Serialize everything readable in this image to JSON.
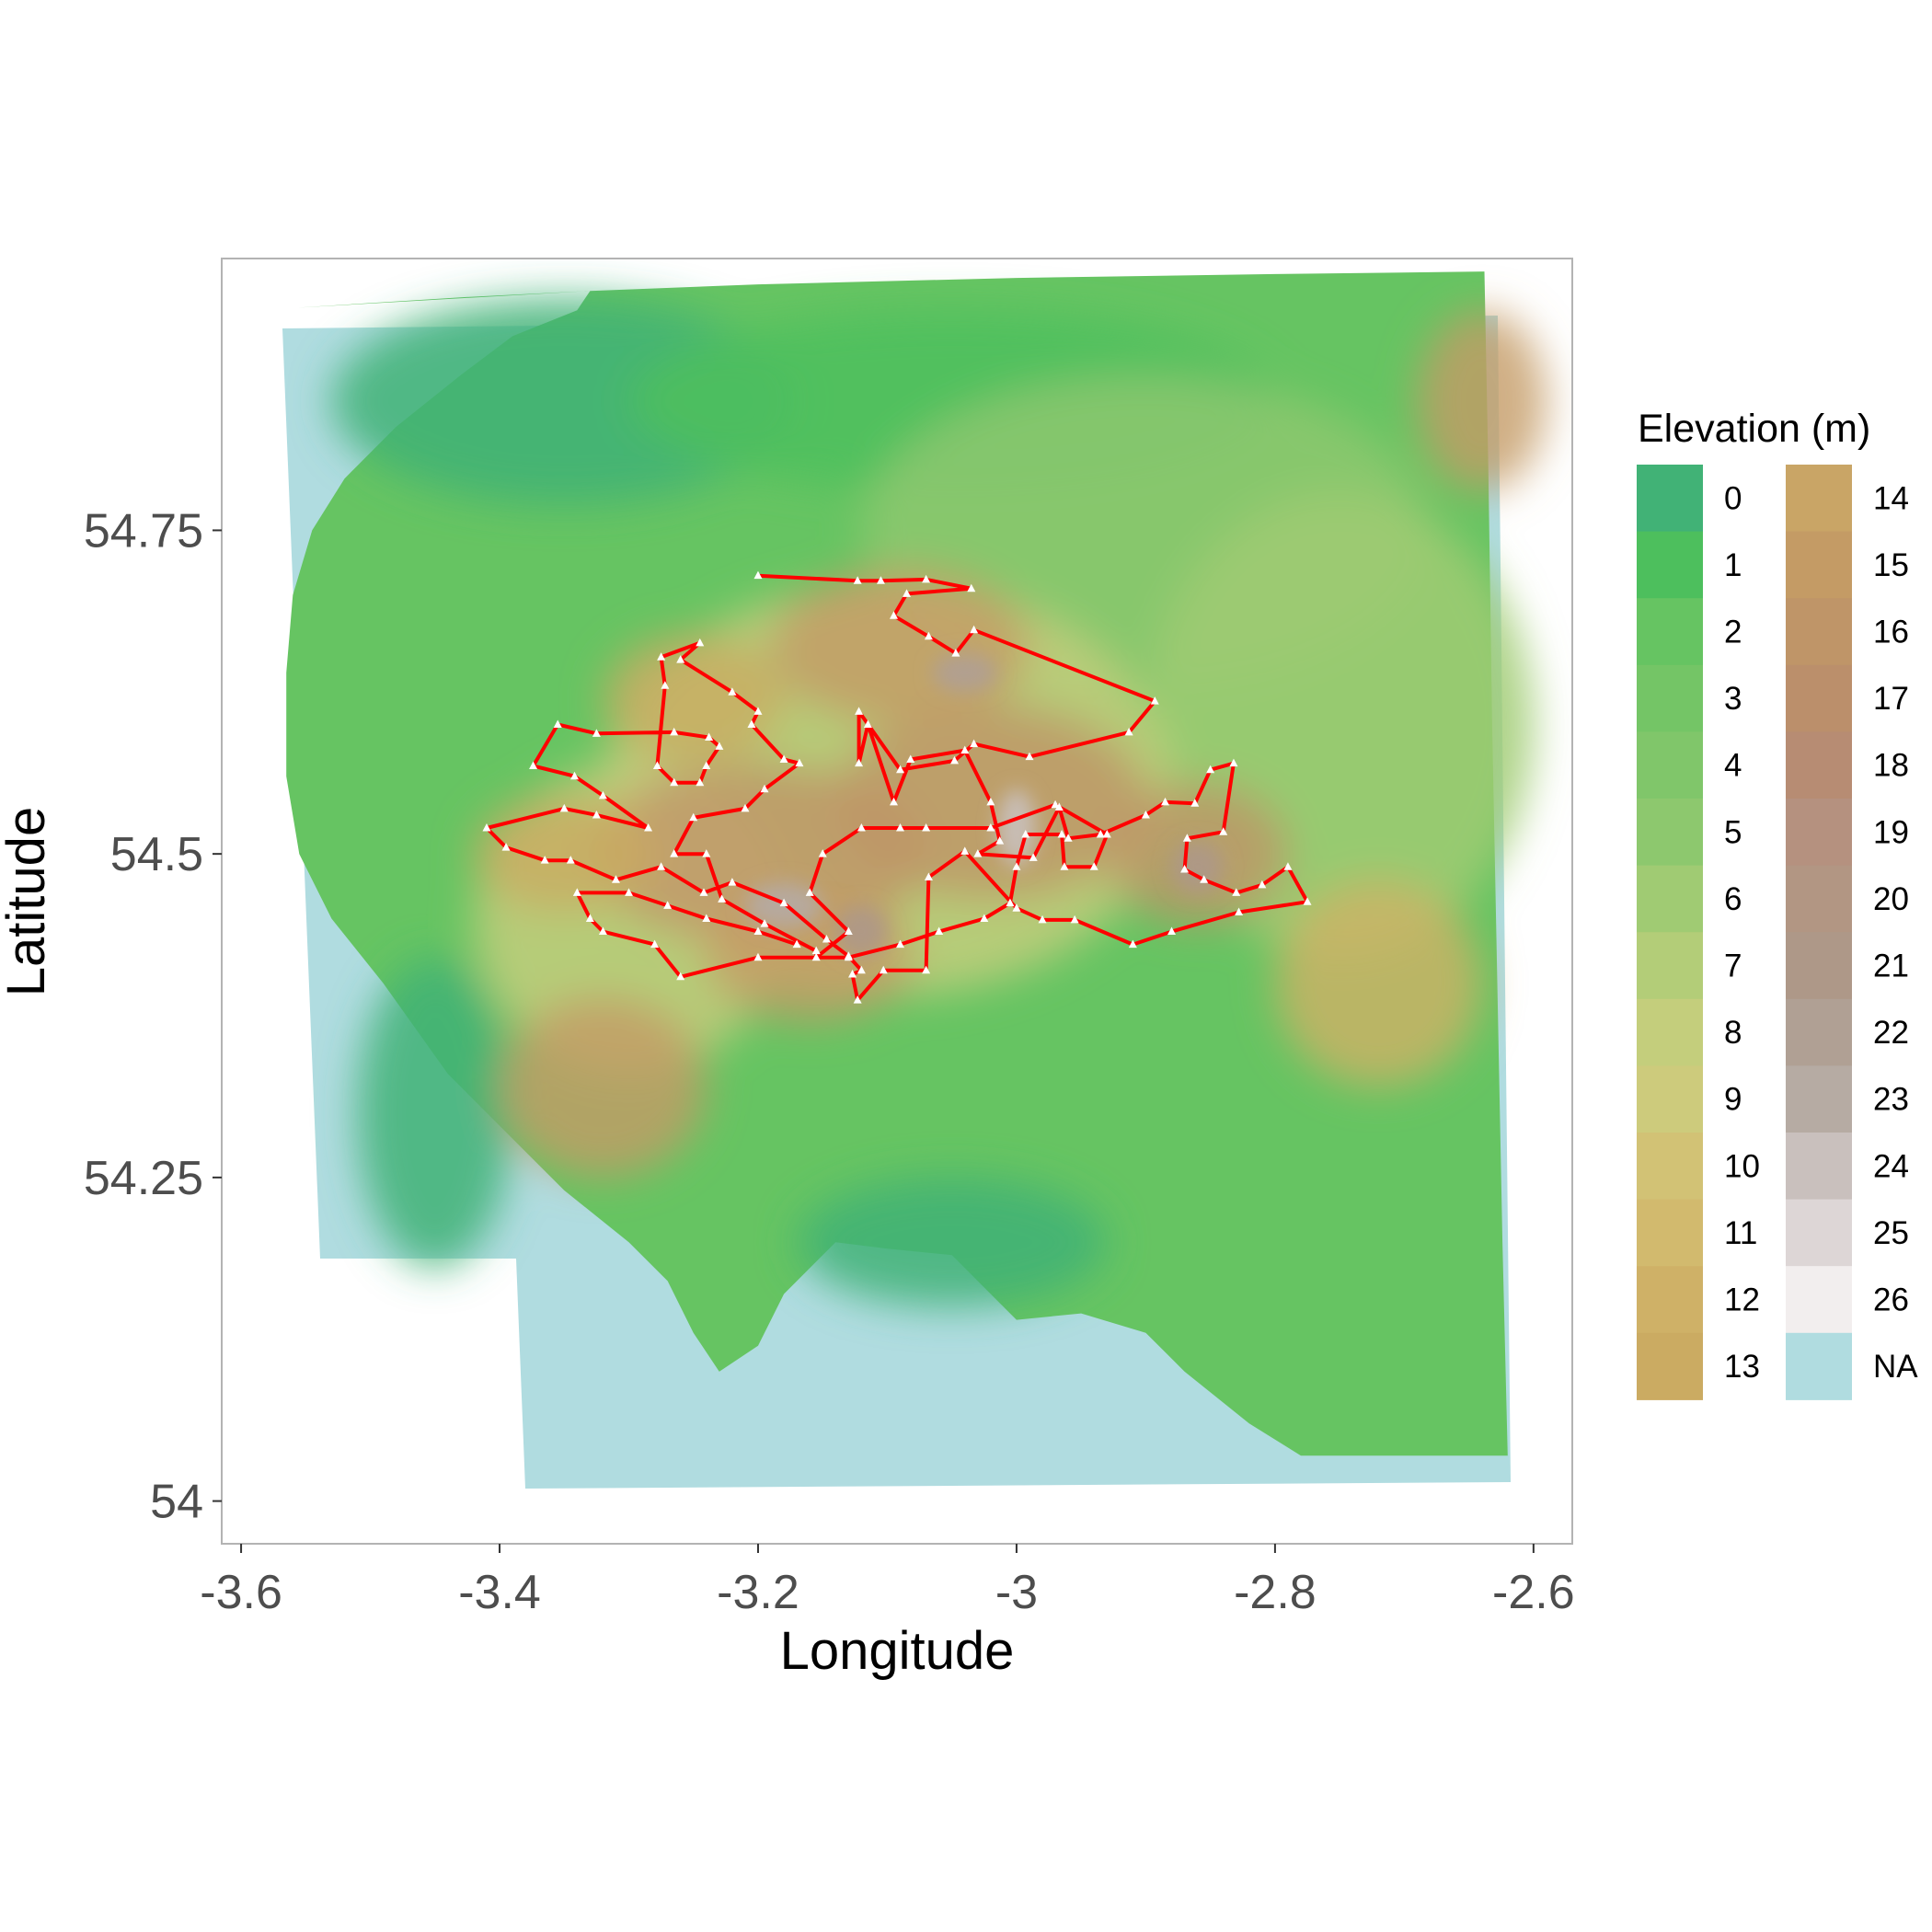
{
  "axes": {
    "x_title": "Longitude",
    "y_title": "Latitude",
    "x_range": [
      -3.615,
      -2.57
    ],
    "y_range": [
      53.967,
      54.96
    ],
    "x_ticks": [
      {
        "value": -3.6,
        "label": "-3.6"
      },
      {
        "value": -3.4,
        "label": "-3.4"
      },
      {
        "value": -3.2,
        "label": "-3.2"
      },
      {
        "value": -3.0,
        "label": "-3"
      },
      {
        "value": -2.8,
        "label": "-2.8"
      },
      {
        "value": -2.6,
        "label": "-2.6"
      }
    ],
    "y_ticks": [
      {
        "value": 54.0,
        "label": "54"
      },
      {
        "value": 54.25,
        "label": "54.25"
      },
      {
        "value": 54.5,
        "label": "54.5"
      },
      {
        "value": 54.75,
        "label": "54.75"
      }
    ]
  },
  "legend": {
    "title": "Elevation (m)",
    "classes": [
      {
        "label": "0",
        "color": "#41b276"
      },
      {
        "label": "1",
        "color": "#4dbf5d"
      },
      {
        "label": "2",
        "color": "#66c462"
      },
      {
        "label": "3",
        "color": "#74c566"
      },
      {
        "label": "4",
        "color": "#80c66a"
      },
      {
        "label": "5",
        "color": "#8dc86e"
      },
      {
        "label": "6",
        "color": "#a0cb73"
      },
      {
        "label": "7",
        "color": "#b3cd78"
      },
      {
        "label": "8",
        "color": "#c4ce7c"
      },
      {
        "label": "9",
        "color": "#cdcb7c"
      },
      {
        "label": "10",
        "color": "#d2c275"
      },
      {
        "label": "11",
        "color": "#d2ba6e"
      },
      {
        "label": "12",
        "color": "#cfb167"
      },
      {
        "label": "13",
        "color": "#cbab62"
      },
      {
        "label": "14",
        "color": "#c9a566"
      },
      {
        "label": "15",
        "color": "#c49b65"
      },
      {
        "label": "16",
        "color": "#bf9568"
      },
      {
        "label": "17",
        "color": "#bb8f6b"
      },
      {
        "label": "18",
        "color": "#b78c73"
      },
      {
        "label": "19",
        "color": "#b5917f"
      },
      {
        "label": "20",
        "color": "#b29683"
      },
      {
        "label": "21",
        "color": "#ae9888"
      },
      {
        "label": "22",
        "color": "#b0a094"
      },
      {
        "label": "23",
        "color": "#b6aba3"
      },
      {
        "label": "24",
        "color": "#c9c0bd"
      },
      {
        "label": "25",
        "color": "#ddd6d6"
      },
      {
        "label": "26",
        "color": "#f2eeee"
      },
      {
        "label": "NA",
        "color": "#b0dce0"
      }
    ]
  },
  "colors": {
    "sea": "#b0dce0",
    "route": "#ff0000",
    "summit_marker": "#ffffff",
    "panel_border": "#b3b3b3",
    "tick_text": "#4d4d4d"
  },
  "map_data": {
    "land_outline": [
      [
        -3.557,
        54.922
      ],
      [
        -3.43,
        54.93
      ],
      [
        -3.33,
        54.935
      ],
      [
        -3.2,
        54.94
      ],
      [
        -3.0,
        54.945
      ],
      [
        -2.8,
        54.948
      ],
      [
        -2.638,
        54.95
      ],
      [
        -2.635,
        54.8
      ],
      [
        -2.632,
        54.6
      ],
      [
        -2.628,
        54.4
      ],
      [
        -2.624,
        54.2
      ],
      [
        -2.62,
        54.035
      ],
      [
        -2.7,
        54.035
      ],
      [
        -2.78,
        54.035
      ],
      [
        -2.82,
        54.06
      ],
      [
        -2.87,
        54.1
      ],
      [
        -2.9,
        54.13
      ],
      [
        -2.95,
        54.145
      ],
      [
        -3.0,
        54.14
      ],
      [
        -3.02,
        54.16
      ],
      [
        -3.05,
        54.19
      ],
      [
        -3.1,
        54.195
      ],
      [
        -3.14,
        54.2
      ],
      [
        -3.18,
        54.16
      ],
      [
        -3.2,
        54.12
      ],
      [
        -3.23,
        54.1
      ],
      [
        -3.25,
        54.13
      ],
      [
        -3.27,
        54.17
      ],
      [
        -3.3,
        54.2
      ],
      [
        -3.35,
        54.24
      ],
      [
        -3.4,
        54.29
      ],
      [
        -3.44,
        54.33
      ],
      [
        -3.49,
        54.4
      ],
      [
        -3.53,
        54.45
      ],
      [
        -3.555,
        54.5
      ],
      [
        -3.565,
        54.56
      ],
      [
        -3.565,
        54.64
      ],
      [
        -3.56,
        54.7
      ],
      [
        -3.545,
        54.75
      ],
      [
        -3.52,
        54.79
      ],
      [
        -3.48,
        54.83
      ],
      [
        -3.43,
        54.87
      ],
      [
        -3.39,
        54.9
      ],
      [
        -3.34,
        54.92
      ],
      [
        -3.33,
        54.935
      ]
    ],
    "high_ground": [
      {
        "center": [
          -3.02,
          54.54
        ],
        "radius": [
          0.12,
          0.075
        ],
        "level": 16
      },
      {
        "center": [
          -3.2,
          54.5
        ],
        "radius": [
          0.13,
          0.07
        ],
        "level": 16
      },
      {
        "center": [
          -3.09,
          54.66
        ],
        "radius": [
          0.1,
          0.06
        ],
        "level": 15
      },
      {
        "center": [
          -2.86,
          54.5
        ],
        "radius": [
          0.07,
          0.055
        ],
        "level": 16
      },
      {
        "center": [
          -3.16,
          54.42
        ],
        "radius": [
          0.08,
          0.05
        ],
        "level": 15
      },
      {
        "center": [
          -3.35,
          54.5
        ],
        "radius": [
          0.07,
          0.045
        ],
        "level": 13
      },
      {
        "center": [
          -3.32,
          54.32
        ],
        "radius": [
          0.08,
          0.07
        ],
        "level": 15
      },
      {
        "center": [
          -2.64,
          54.85
        ],
        "radius": [
          0.05,
          0.07
        ],
        "level": 15
      },
      {
        "center": [
          -2.72,
          54.4
        ],
        "radius": [
          0.08,
          0.08
        ],
        "level": 12
      },
      {
        "center": [
          -3.25,
          54.62
        ],
        "radius": [
          0.07,
          0.05
        ],
        "level": 13
      }
    ],
    "peaks": [
      {
        "center": [
          -3.0,
          54.52
        ],
        "radius": [
          0.015,
          0.03
        ],
        "level": 24
      },
      {
        "center": [
          -3.18,
          54.46
        ],
        "radius": [
          0.03,
          0.018
        ],
        "level": 23
      },
      {
        "center": [
          -3.04,
          54.64
        ],
        "radius": [
          0.025,
          0.015
        ],
        "level": 22
      },
      {
        "center": [
          -2.86,
          54.49
        ],
        "radius": [
          0.02,
          0.02
        ],
        "level": 21
      },
      {
        "center": [
          -3.12,
          54.44
        ],
        "radius": [
          0.02,
          0.02
        ],
        "level": 21
      }
    ],
    "route": [
      [
        -3.2,
        54.715
      ],
      [
        -3.123,
        54.714
      ],
      [
        -3.117,
        54.694
      ],
      [
        -3.106,
        54.713
      ],
      [
        -3.07,
        54.713
      ],
      [
        -3.046,
        54.716
      ],
      [
        -3.023,
        54.7
      ],
      [
        -3.064,
        54.697
      ],
      [
        -3.088,
        54.692
      ],
      [
        -3.1,
        54.676
      ],
      [
        -3.085,
        54.661
      ],
      [
        -3.043,
        54.645
      ],
      [
        -3.03,
        54.654
      ],
      [
        -3.025,
        54.664
      ],
      [
        -3.042,
        54.647
      ],
      [
        -3.069,
        54.648
      ],
      [
        -3.083,
        54.66
      ],
      [
        -3.096,
        54.686
      ],
      [
        -3.113,
        54.7
      ],
      [
        -3.117,
        54.713
      ],
      [
        -3.2,
        54.715
      ],
      [
        -3.12,
        54.697
      ],
      [
        -3.1,
        54.676
      ]
    ],
    "summits": [
      [
        -3.2,
        54.715
      ],
      [
        -3.123,
        54.714
      ],
      [
        -3.106,
        54.713
      ],
      [
        -3.07,
        54.713
      ],
      [
        -3.046,
        54.716
      ],
      [
        -3.023,
        54.7
      ],
      [
        -3.1,
        54.676
      ],
      [
        -3.043,
        54.645
      ],
      [
        -3.03,
        54.654
      ],
      [
        -3.083,
        54.66
      ]
    ]
  },
  "route_points": [
    [
      -3.2,
      54.715
    ],
    [
      -3.123,
      54.711
    ],
    [
      -3.105,
      54.711
    ],
    [
      -3.07,
      54.712
    ],
    [
      -3.035,
      54.705
    ],
    [
      -3.085,
      54.701
    ],
    [
      -3.095,
      54.684
    ],
    [
      -3.068,
      54.668
    ],
    [
      -3.047,
      54.655
    ],
    [
      -3.033,
      54.673
    ],
    [
      -2.893,
      54.618
    ],
    [
      -2.913,
      54.594
    ],
    [
      -2.99,
      54.575
    ],
    [
      -3.033,
      54.585
    ],
    [
      -3.048,
      54.572
    ],
    [
      -3.09,
      54.565
    ],
    [
      -3.122,
      54.61
    ],
    [
      -3.122,
      54.57
    ],
    [
      -3.115,
      54.6
    ],
    [
      -3.095,
      54.54
    ],
    [
      -3.082,
      54.573
    ],
    [
      -3.04,
      54.58
    ],
    [
      -3.02,
      54.54
    ],
    [
      -3.013,
      54.51
    ],
    [
      -3.03,
      54.5
    ],
    [
      -2.987,
      54.497
    ],
    [
      -2.967,
      54.536
    ],
    [
      -2.96,
      54.512
    ],
    [
      -2.935,
      54.515
    ],
    [
      -2.9,
      54.53
    ],
    [
      -2.885,
      54.54
    ],
    [
      -2.862,
      54.539
    ],
    [
      -2.85,
      54.565
    ],
    [
      -2.832,
      54.57
    ],
    [
      -2.84,
      54.517
    ],
    [
      -2.868,
      54.512
    ],
    [
      -2.87,
      54.488
    ],
    [
      -2.855,
      54.48
    ],
    [
      -2.83,
      54.47
    ],
    [
      -2.81,
      54.476
    ],
    [
      -2.79,
      54.49
    ],
    [
      -2.775,
      54.463
    ],
    [
      -2.828,
      54.455
    ],
    [
      -2.88,
      54.44
    ],
    [
      -2.91,
      54.43
    ],
    [
      -2.955,
      54.449
    ],
    [
      -2.98,
      54.449
    ],
    [
      -3.0,
      54.458
    ],
    [
      -3.04,
      54.502
    ],
    [
      -3.068,
      54.482
    ],
    [
      -3.07,
      54.41
    ],
    [
      -3.103,
      54.41
    ],
    [
      -3.123,
      54.387
    ],
    [
      -3.127,
      54.407
    ],
    [
      -3.12,
      54.41
    ],
    [
      -3.13,
      54.421
    ],
    [
      -3.147,
      54.434
    ],
    [
      -3.18,
      54.462
    ],
    [
      -3.22,
      54.478
    ],
    [
      -3.242,
      54.47
    ],
    [
      -3.275,
      54.49
    ],
    [
      -3.31,
      54.48
    ],
    [
      -3.345,
      54.495
    ],
    [
      -3.365,
      54.495
    ],
    [
      -3.395,
      54.505
    ],
    [
      -3.41,
      54.52
    ],
    [
      -3.35,
      54.535
    ],
    [
      -3.325,
      54.53
    ],
    [
      -3.285,
      54.52
    ],
    [
      -3.32,
      54.545
    ],
    [
      -3.342,
      54.56
    ],
    [
      -3.374,
      54.568
    ],
    [
      -3.355,
      54.6
    ],
    [
      -3.325,
      54.593
    ],
    [
      -3.265,
      54.594
    ],
    [
      -3.238,
      54.59
    ],
    [
      -3.23,
      54.583
    ],
    [
      -3.24,
      54.568
    ],
    [
      -3.245,
      54.555
    ],
    [
      -3.265,
      54.555
    ],
    [
      -3.278,
      54.568
    ],
    [
      -3.272,
      54.63
    ],
    [
      -3.275,
      54.652
    ],
    [
      -3.245,
      54.663
    ],
    [
      -3.26,
      54.65
    ],
    [
      -3.22,
      54.625
    ],
    [
      -3.2,
      54.61
    ],
    [
      -3.205,
      54.6
    ],
    [
      -3.18,
      54.573
    ],
    [
      -3.168,
      54.57
    ],
    [
      -3.195,
      54.55
    ],
    [
      -3.21,
      54.535
    ],
    [
      -3.25,
      54.528
    ],
    [
      -3.265,
      54.5
    ],
    [
      -3.24,
      54.5
    ],
    [
      -3.228,
      54.465
    ],
    [
      -3.195,
      54.446
    ],
    [
      -3.155,
      54.425
    ],
    [
      -3.155,
      54.42
    ],
    [
      -3.13,
      54.44
    ],
    [
      -3.16,
      54.47
    ],
    [
      -3.15,
      54.5
    ],
    [
      -3.12,
      54.52
    ],
    [
      -3.09,
      54.52
    ],
    [
      -3.07,
      54.52
    ],
    [
      -3.02,
      54.52
    ],
    [
      -2.97,
      54.538
    ],
    [
      -2.93,
      54.515
    ],
    [
      -2.94,
      54.49
    ],
    [
      -2.963,
      54.49
    ],
    [
      -2.965,
      54.515
    ],
    [
      -2.993,
      54.515
    ],
    [
      -3.0,
      54.49
    ],
    [
      -3.005,
      54.462
    ],
    [
      -3.025,
      54.45
    ],
    [
      -3.06,
      54.44
    ],
    [
      -3.09,
      54.43
    ],
    [
      -3.13,
      54.42
    ],
    [
      -3.2,
      54.42
    ],
    [
      -3.26,
      54.405
    ],
    [
      -3.28,
      54.43
    ],
    [
      -3.32,
      54.44
    ],
    [
      -3.33,
      54.45
    ],
    [
      -3.34,
      54.47
    ],
    [
      -3.3,
      54.47
    ],
    [
      -3.27,
      54.46
    ],
    [
      -3.24,
      54.45
    ],
    [
      -3.2,
      54.44
    ],
    [
      -3.17,
      54.43
    ]
  ]
}
